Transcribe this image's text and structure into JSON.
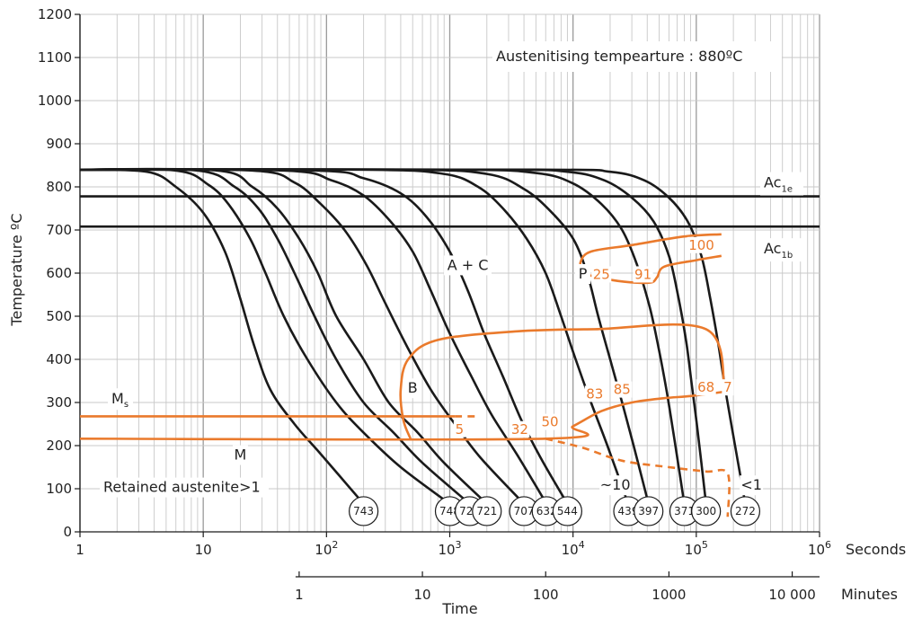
{
  "chart_data": {
    "type": "line",
    "title": "",
    "xlabel": "Time",
    "ylabel": "Temperature ºC",
    "x_scale": "log",
    "xlim_seconds": [
      1,
      1000000
    ],
    "ylim": [
      0,
      1200
    ],
    "grid": true,
    "y_ticks": [
      "0",
      "100",
      "200",
      "300",
      "400",
      "500",
      "600",
      "700",
      "800",
      "900",
      "1000",
      "1100",
      "1200"
    ],
    "y_tick_values": [
      0,
      100,
      200,
      300,
      400,
      500,
      600,
      700,
      800,
      900,
      1000,
      1100,
      1200
    ],
    "seconds_axis": {
      "unit": "Seconds",
      "ticks": [
        {
          "value": 1,
          "base": "1",
          "exp": ""
        },
        {
          "value": 10,
          "base": "10",
          "exp": ""
        },
        {
          "value": 100,
          "base": "10",
          "exp": "2"
        },
        {
          "value": 1000,
          "base": "10",
          "exp": "3"
        },
        {
          "value": 10000,
          "base": "10",
          "exp": "4"
        },
        {
          "value": 100000,
          "base": "10",
          "exp": "5"
        },
        {
          "value": 1000000,
          "base": "10",
          "exp": "6"
        }
      ]
    },
    "minutes_axis": {
      "unit": "Minutes",
      "ticks": [
        {
          "minutes": 1,
          "label": "1"
        },
        {
          "minutes": 10,
          "label": "10"
        },
        {
          "minutes": 100,
          "label": "100"
        },
        {
          "minutes": 1000,
          "label": "1000"
        },
        {
          "minutes": 10000,
          "label": "10 000"
        }
      ]
    },
    "annotation": "Austenitising tempearture : 880ºC",
    "lines": [
      {
        "base": "Ac",
        "sub": "1e",
        "temperature": 778
      },
      {
        "base": "Ac",
        "sub": "1b",
        "temperature": 708
      }
    ],
    "region_labels": [
      {
        "text": "A + C",
        "time": 1400,
        "temp": 620
      },
      {
        "text": "B",
        "time": 500,
        "temp": 335
      },
      {
        "text": "P",
        "time": 12000,
        "temp": 600
      },
      {
        "text": "M",
        "time": 20,
        "temp": 180
      }
    ],
    "ms_label": {
      "base": "M",
      "sub": "s",
      "time": 1.8,
      "temp": 310
    },
    "retained_text": "Retained austenite>1",
    "phase_percent_labels": [
      {
        "text": "100",
        "time": 110000,
        "temp": 665
      },
      {
        "text": "25",
        "time": 17000,
        "temp": 597
      },
      {
        "text": "91",
        "time": 37000,
        "temp": 597
      },
      {
        "text": "5",
        "time": 1200,
        "temp": 238
      },
      {
        "text": "32",
        "time": 3700,
        "temp": 238
      },
      {
        "text": "50",
        "time": 6500,
        "temp": 255
      },
      {
        "text": "83",
        "time": 15000,
        "temp": 320
      },
      {
        "text": "85",
        "time": 25000,
        "temp": 330
      },
      {
        "text": "68",
        "time": 120000,
        "temp": 335
      },
      {
        "text": "7",
        "time": 180000,
        "temp": 335
      }
    ],
    "fraction_labels": [
      {
        "text": "~10",
        "time": 22000,
        "temp": 110
      },
      {
        "text": "<1",
        "time": 280000,
        "temp": 110
      }
    ],
    "hardness": {
      "values": [
        "743",
        "748",
        "720",
        "721",
        "707",
        "632",
        "544",
        "439",
        "397",
        "371",
        "300",
        "272"
      ],
      "times": [
        200,
        1000,
        1450,
        2000,
        4000,
        6100,
        9000,
        28000,
        41000,
        80000,
        120000,
        250000
      ]
    },
    "cooling_curves": [
      {
        "points": [
          [
            1,
            840
          ],
          [
            3.5,
            835
          ],
          [
            6,
            800
          ],
          [
            10,
            740
          ],
          [
            15,
            650
          ],
          [
            20,
            540
          ],
          [
            26,
            430
          ],
          [
            35,
            330
          ],
          [
            55,
            250
          ],
          [
            90,
            180
          ],
          [
            200,
            65
          ]
        ]
      },
      {
        "points": [
          [
            1,
            840
          ],
          [
            6,
            838
          ],
          [
            11,
            805
          ],
          [
            16,
            760
          ],
          [
            24,
            680
          ],
          [
            32,
            600
          ],
          [
            45,
            500
          ],
          [
            70,
            400
          ],
          [
            120,
            300
          ],
          [
            200,
            230
          ],
          [
            400,
            150
          ],
          [
            1000,
            65
          ]
        ]
      },
      {
        "points": [
          [
            1,
            840
          ],
          [
            9,
            838
          ],
          [
            18,
            800
          ],
          [
            28,
            750
          ],
          [
            40,
            680
          ],
          [
            55,
            600
          ],
          [
            80,
            500
          ],
          [
            120,
            400
          ],
          [
            200,
            300
          ],
          [
            350,
            230
          ],
          [
            600,
            160
          ],
          [
            1450,
            65
          ]
        ]
      },
      {
        "points": [
          [
            1,
            840
          ],
          [
            13,
            838
          ],
          [
            25,
            800
          ],
          [
            40,
            750
          ],
          [
            60,
            680
          ],
          [
            85,
            600
          ],
          [
            120,
            500
          ],
          [
            200,
            400
          ],
          [
            320,
            300
          ],
          [
            550,
            230
          ],
          [
            900,
            160
          ],
          [
            2000,
            65
          ]
        ]
      },
      {
        "points": [
          [
            1,
            840
          ],
          [
            25,
            838
          ],
          [
            55,
            810
          ],
          [
            90,
            760
          ],
          [
            140,
            700
          ],
          [
            210,
            620
          ],
          [
            300,
            530
          ],
          [
            450,
            430
          ],
          [
            700,
            330
          ],
          [
            1100,
            250
          ],
          [
            1800,
            170
          ],
          [
            4000,
            65
          ]
        ]
      },
      {
        "points": [
          [
            1,
            840
          ],
          [
            45,
            838
          ],
          [
            110,
            815
          ],
          [
            200,
            780
          ],
          [
            330,
            720
          ],
          [
            500,
            650
          ],
          [
            700,
            560
          ],
          [
            1000,
            460
          ],
          [
            1500,
            360
          ],
          [
            2200,
            270
          ],
          [
            3500,
            180
          ],
          [
            6100,
            65
          ]
        ]
      },
      {
        "points": [
          [
            1,
            840
          ],
          [
            80,
            838
          ],
          [
            200,
            820
          ],
          [
            400,
            785
          ],
          [
            650,
            730
          ],
          [
            1000,
            650
          ],
          [
            1400,
            560
          ],
          [
            1900,
            460
          ],
          [
            2700,
            360
          ],
          [
            3800,
            260
          ],
          [
            5500,
            170
          ],
          [
            9000,
            65
          ]
        ]
      },
      {
        "points": [
          [
            1,
            840
          ],
          [
            200,
            840
          ],
          [
            900,
            830
          ],
          [
            1700,
            800
          ],
          [
            2700,
            750
          ],
          [
            4200,
            680
          ],
          [
            6000,
            600
          ],
          [
            8000,
            500
          ],
          [
            10500,
            400
          ],
          [
            14000,
            300
          ],
          [
            19000,
            200
          ],
          [
            28000,
            65
          ]
        ]
      },
      {
        "points": [
          [
            1,
            840
          ],
          [
            400,
            840
          ],
          [
            2000,
            830
          ],
          [
            4000,
            795
          ],
          [
            6500,
            745
          ],
          [
            10000,
            680
          ],
          [
            13000,
            600
          ],
          [
            16000,
            500
          ],
          [
            20000,
            400
          ],
          [
            25000,
            300
          ],
          [
            31000,
            200
          ],
          [
            41000,
            65
          ]
        ]
      },
      {
        "points": [
          [
            1,
            840
          ],
          [
            1000,
            840
          ],
          [
            5000,
            832
          ],
          [
            10000,
            808
          ],
          [
            17000,
            760
          ],
          [
            25000,
            700
          ],
          [
            33000,
            620
          ],
          [
            42000,
            520
          ],
          [
            50000,
            420
          ],
          [
            58000,
            320
          ],
          [
            66000,
            220
          ],
          [
            80000,
            65
          ]
        ]
      },
      {
        "points": [
          [
            1,
            840
          ],
          [
            2000,
            840
          ],
          [
            9000,
            835
          ],
          [
            18000,
            815
          ],
          [
            30000,
            775
          ],
          [
            45000,
            720
          ],
          [
            60000,
            640
          ],
          [
            72000,
            540
          ],
          [
            83000,
            440
          ],
          [
            92000,
            340
          ],
          [
            102000,
            240
          ],
          [
            120000,
            65
          ]
        ]
      },
      {
        "points": [
          [
            1,
            840
          ],
          [
            5000,
            840
          ],
          [
            20000,
            835
          ],
          [
            38000,
            815
          ],
          [
            60000,
            775
          ],
          [
            85000,
            720
          ],
          [
            110000,
            640
          ],
          [
            130000,
            540
          ],
          [
            150000,
            440
          ],
          [
            170000,
            340
          ],
          [
            195000,
            240
          ],
          [
            250000,
            65
          ]
        ]
      }
    ],
    "transformation_boundaries": [
      {
        "kind": "solid",
        "points": [
          [
            1,
            268
          ],
          [
            1100,
            268
          ]
        ]
      },
      {
        "kind": "solid",
        "points": [
          [
            1,
            216
          ],
          [
            6000,
            216
          ],
          [
            10000,
            245
          ],
          [
            17000,
            280
          ],
          [
            30000,
            300
          ],
          [
            55000,
            310
          ],
          [
            90000,
            315
          ],
          [
            170000,
            325
          ]
        ]
      },
      {
        "kind": "solid",
        "points": [
          [
            480,
            216
          ],
          [
            420,
            260
          ],
          [
            400,
            330
          ],
          [
            460,
            400
          ],
          [
            800,
            445
          ],
          [
            3500,
            465
          ],
          [
            15000,
            470
          ],
          [
            120000,
            470
          ],
          [
            170000,
            325
          ]
        ]
      },
      {
        "kind": "solid",
        "points": [
          [
            12000,
            600
          ],
          [
            11500,
            625
          ],
          [
            14000,
            650
          ],
          [
            30000,
            665
          ],
          [
            80000,
            685
          ],
          [
            160000,
            690
          ]
        ]
      },
      {
        "kind": "solid",
        "points": [
          [
            12000,
            600
          ],
          [
            16000,
            590
          ],
          [
            26000,
            580
          ],
          [
            42000,
            578
          ],
          [
            48000,
            590
          ],
          [
            55000,
            615
          ],
          [
            100000,
            630
          ],
          [
            160000,
            640
          ]
        ]
      },
      {
        "kind": "dashed",
        "points": [
          [
            1100,
            268
          ],
          [
            1600,
            268
          ]
        ]
      },
      {
        "kind": "dashed",
        "points": [
          [
            6000,
            216
          ],
          [
            12000,
            195
          ],
          [
            25000,
            165
          ],
          [
            60000,
            150
          ],
          [
            120000,
            140
          ],
          [
            180000,
            135
          ],
          [
            180000,
            35
          ]
        ]
      }
    ]
  }
}
